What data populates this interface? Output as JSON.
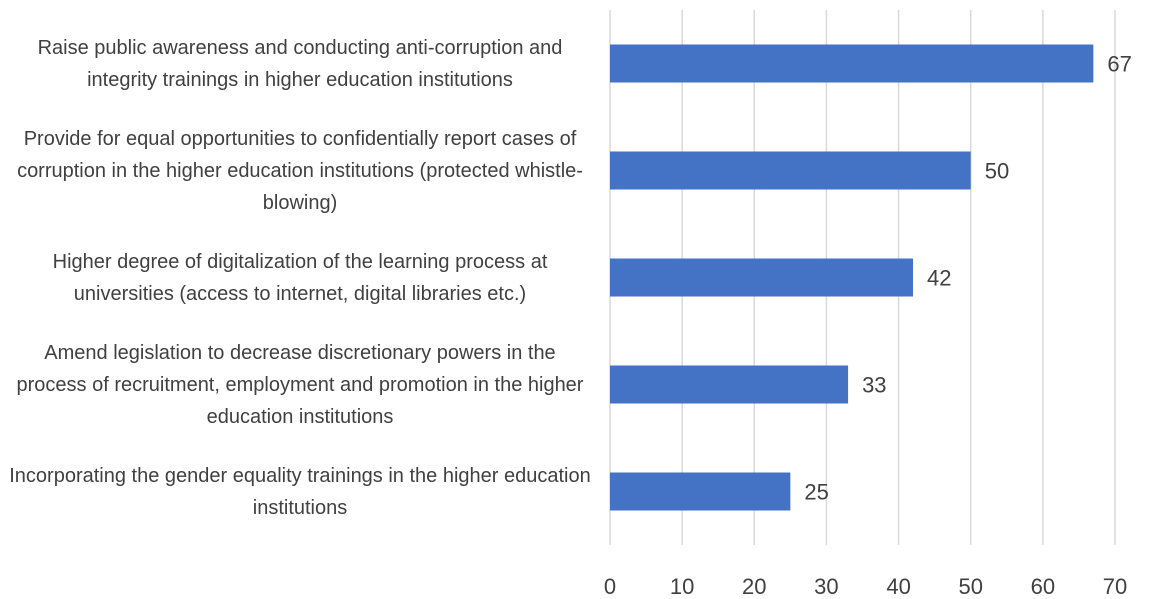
{
  "chart_data": {
    "type": "bar",
    "orientation": "horizontal",
    "categories": [
      "Raise public awareness and conducting anti-corruption and integrity trainings in higher education institutions",
      "Provide for equal opportunities to confidentially report cases of corruption in the higher education institutions (protected whistle-blowing)",
      "Higher degree of digitalization of the learning process at universities (access to internet, digital libraries etc.)",
      "Amend legislation to decrease discretionary powers in the process of recruitment, employment and promotion in the higher education institutions",
      "Incorporating the gender equality trainings in the higher education institutions"
    ],
    "values": [
      67,
      50,
      42,
      33,
      25
    ],
    "color": "#4472c4",
    "xlim": [
      0,
      70
    ],
    "xticks": [
      0,
      10,
      20,
      30,
      40,
      50,
      60,
      70
    ],
    "grid": true
  }
}
